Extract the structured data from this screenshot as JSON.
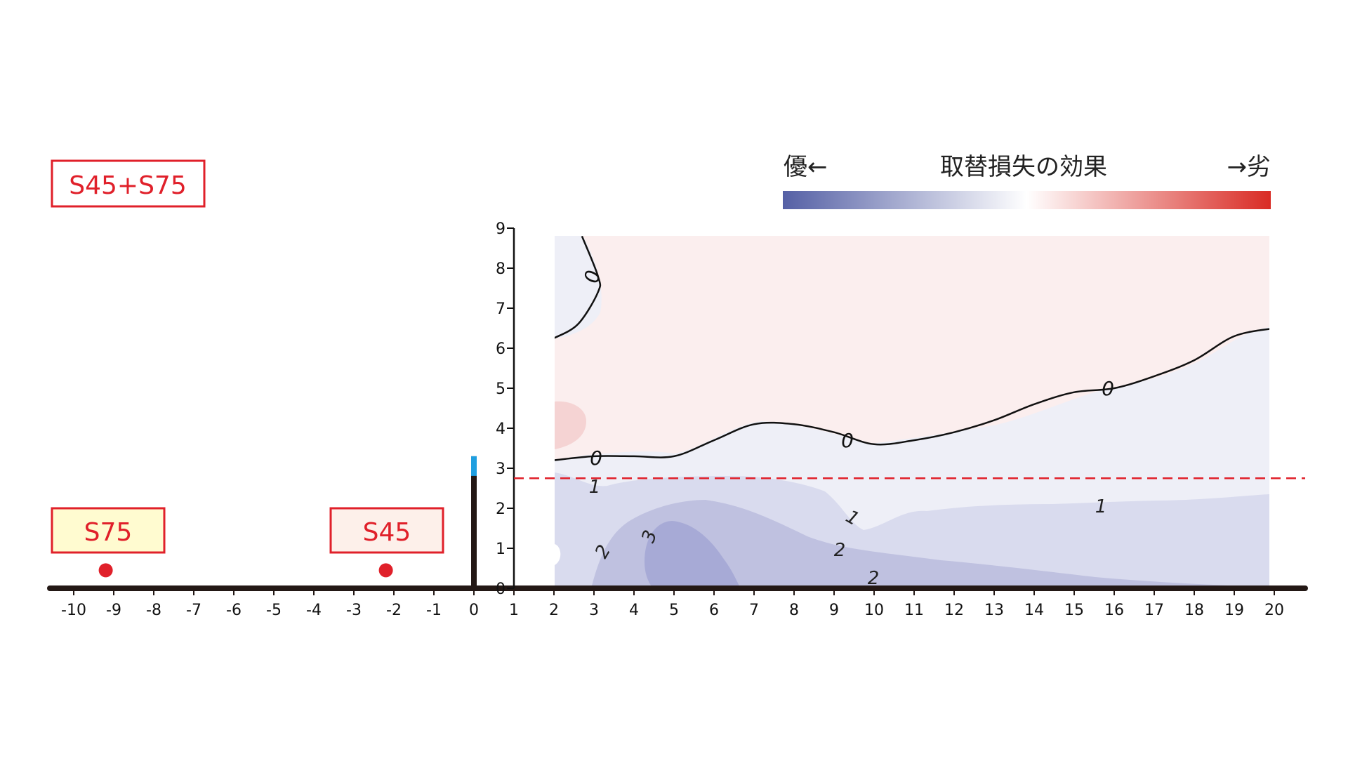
{
  "chart_data": {
    "type": "heatmap",
    "subtype": "contour",
    "title": "",
    "xlabel": "",
    "ylabel": "",
    "x_ticks": [
      "-10",
      "-9",
      "-8",
      "-7",
      "-6",
      "-5",
      "-4",
      "-3",
      "-2",
      "-1",
      "0",
      "1",
      "2",
      "3",
      "4",
      "5",
      "6",
      "7",
      "8",
      "9",
      "10",
      "11",
      "12",
      "13",
      "14",
      "15",
      "16",
      "17",
      "18",
      "19",
      "20"
    ],
    "y_ticks": [
      "0",
      "1",
      "2",
      "3",
      "4",
      "5",
      "6",
      "7",
      "8",
      "9"
    ],
    "xlim": [
      -10,
      20
    ],
    "ylim": [
      0,
      9
    ],
    "grid": false,
    "colorbar": {
      "title": "取替損失の効果",
      "left_label": "優←",
      "right_label": "→劣",
      "colors": [
        "#5560a5",
        "#ffffff",
        "#d92b24"
      ]
    },
    "contour_levels": [
      "0",
      "0",
      "0",
      "0",
      "1",
      "1",
      "1",
      "2",
      "2",
      "2",
      "3"
    ],
    "contour_lines": [
      {
        "level": "0",
        "points": [
          [
            2,
            6.25
          ],
          [
            2.6,
            6.6
          ],
          [
            3.1,
            7.4
          ],
          [
            3.1,
            7.8
          ],
          [
            2.7,
            8.8
          ]
        ]
      },
      {
        "level": "0",
        "points": [
          [
            2,
            3.2
          ],
          [
            3,
            3.3
          ],
          [
            4,
            3.3
          ],
          [
            5,
            3.3
          ],
          [
            6,
            3.7
          ],
          [
            7,
            4.1
          ],
          [
            8,
            4.1
          ],
          [
            9,
            3.9
          ],
          [
            10,
            3.6
          ],
          [
            11,
            3.7
          ],
          [
            12,
            3.9
          ],
          [
            13,
            4.2
          ],
          [
            14,
            4.6
          ],
          [
            15,
            4.9
          ],
          [
            16,
            5.0
          ],
          [
            17,
            5.3
          ],
          [
            18,
            5.7
          ],
          [
            19,
            6.3
          ],
          [
            20,
            6.5
          ]
        ]
      }
    ],
    "reference_line": {
      "y": 2.75,
      "style": "dashed",
      "color": "#e0202a"
    },
    "barrier": {
      "x": 0,
      "height": 3.3,
      "top_color": "#1f9fe0"
    },
    "points": [
      {
        "label": "S75",
        "x": -9.2,
        "y": 0.45
      },
      {
        "label": "S45",
        "x": -2.2,
        "y": 0.45
      }
    ],
    "boxes": {
      "combo": "S45+S75",
      "s75": "S75",
      "s45": "S45"
    },
    "colors": {
      "red": "#e0202a",
      "s75_fill": "#fffbd0",
      "s45_fill": "#fdf0ea",
      "positive_region": "#fbeeee",
      "zero_region": "#eeeff7",
      "level1": "#d9dbee",
      "level2": "#bfc1e0",
      "level3": "#a7aad6",
      "warm_spot": "#f5d3d3"
    }
  }
}
